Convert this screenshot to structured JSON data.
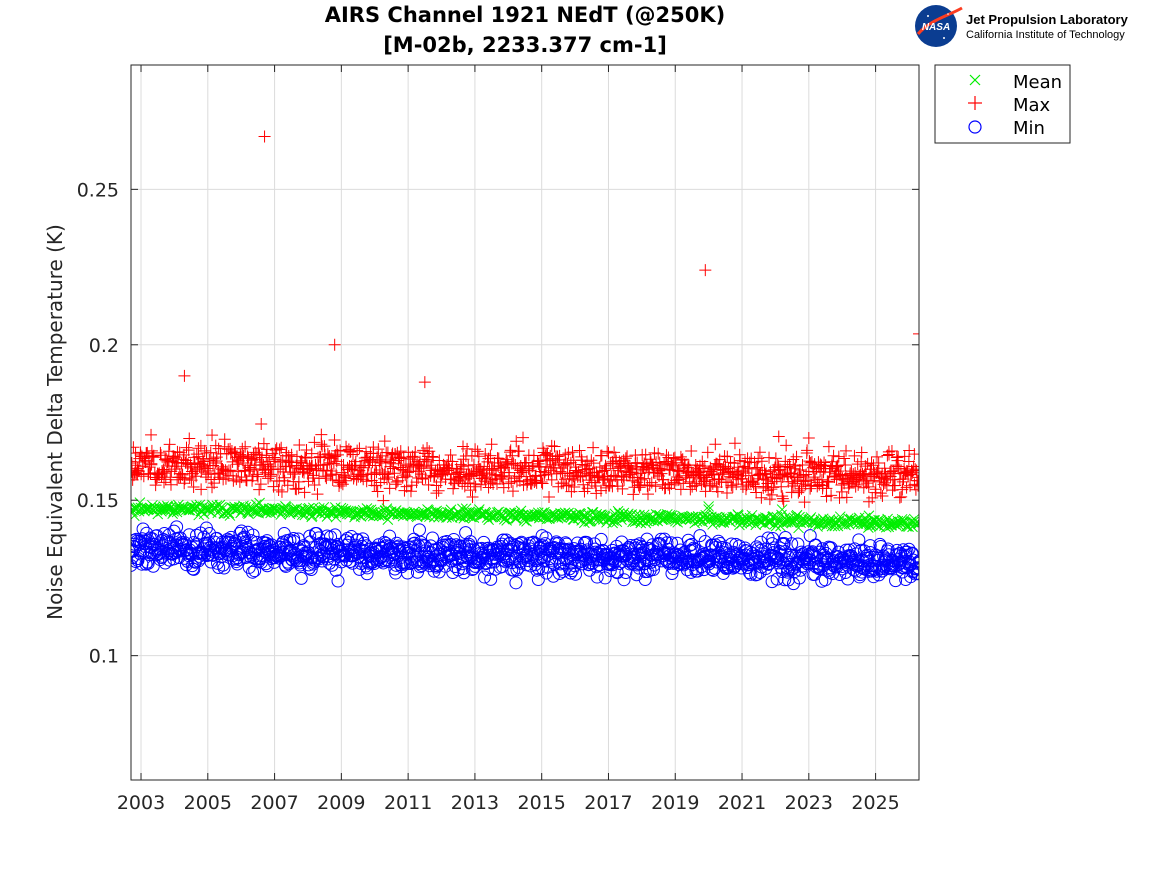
{
  "logo": {
    "emblem": "NASA",
    "title": "Jet Propulsion Laboratory",
    "subtitle": "California Institute of Technology"
  },
  "chart_data": {
    "type": "scatter",
    "title_line1": "AIRS Channel 1921 NEdT (@250K)",
    "title_line2": "[M-02b, 2233.377 cm-1]",
    "xlabel": "",
    "ylabel": "Noise Equivalent Delta Temperature (K)",
    "xlim": [
      2002.7,
      2026.3
    ],
    "ylim": [
      0.06,
      0.29
    ],
    "x_ticks": [
      "2003",
      "2005",
      "2007",
      "2009",
      "2011",
      "2013",
      "2015",
      "2017",
      "2019",
      "2021",
      "2023",
      "2025"
    ],
    "y_ticks": [
      "0.1",
      "0.15",
      "0.2",
      "0.25"
    ],
    "grid": true,
    "legend_position": "outside-top-right",
    "series": [
      {
        "name": "Mean",
        "marker": "x",
        "color": "#00ee00",
        "trend_start": [
          2002.7,
          0.1475
        ],
        "trend_end": [
          2026.3,
          0.1425
        ],
        "spread": 0.0008,
        "samples": 700,
        "seed": 11,
        "outliers": [
          [
            2020.0,
            0.148
          ],
          [
            2020.0,
            0.147
          ],
          [
            2022.2,
            0.147
          ],
          [
            2024.8,
            0.145
          ],
          [
            2002.8,
            0.145
          ]
        ]
      },
      {
        "name": "Max",
        "marker": "+",
        "color": "#ff0000",
        "trend_start": [
          2002.7,
          0.1615
        ],
        "trend_end": [
          2026.3,
          0.158
        ],
        "spread": 0.0035,
        "samples": 1300,
        "seed": 23,
        "outliers": [
          [
            2006.7,
            0.267
          ],
          [
            2019.9,
            0.224
          ],
          [
            2008.8,
            0.2
          ],
          [
            2026.3,
            0.2035
          ],
          [
            2004.3,
            0.19
          ],
          [
            2011.5,
            0.188
          ],
          [
            2006.6,
            0.1745
          ],
          [
            2003.3,
            0.171
          ],
          [
            2022.1,
            0.1705
          ],
          [
            2023.0,
            0.17
          ],
          [
            2004.8,
            0.1535
          ],
          [
            2013.5,
            0.168
          ],
          [
            2015.3,
            0.1675
          ],
          [
            2020.2,
            0.168
          ],
          [
            2008.4,
            0.168
          ],
          [
            2010.3,
            0.169
          ]
        ]
      },
      {
        "name": "Min",
        "marker": "o",
        "color": "#0000ff",
        "trend_start": [
          2002.7,
          0.1345
        ],
        "trend_end": [
          2026.3,
          0.13
        ],
        "spread": 0.0028,
        "samples": 1300,
        "seed": 37,
        "outliers": [
          [
            2008.9,
            0.124
          ],
          [
            2014.9,
            0.1245
          ],
          [
            2018.1,
            0.1245
          ],
          [
            2021.9,
            0.1238
          ],
          [
            2025.9,
            0.1245
          ],
          [
            2016.9,
            0.125
          ],
          [
            2022.3,
            0.138
          ]
        ]
      }
    ]
  }
}
